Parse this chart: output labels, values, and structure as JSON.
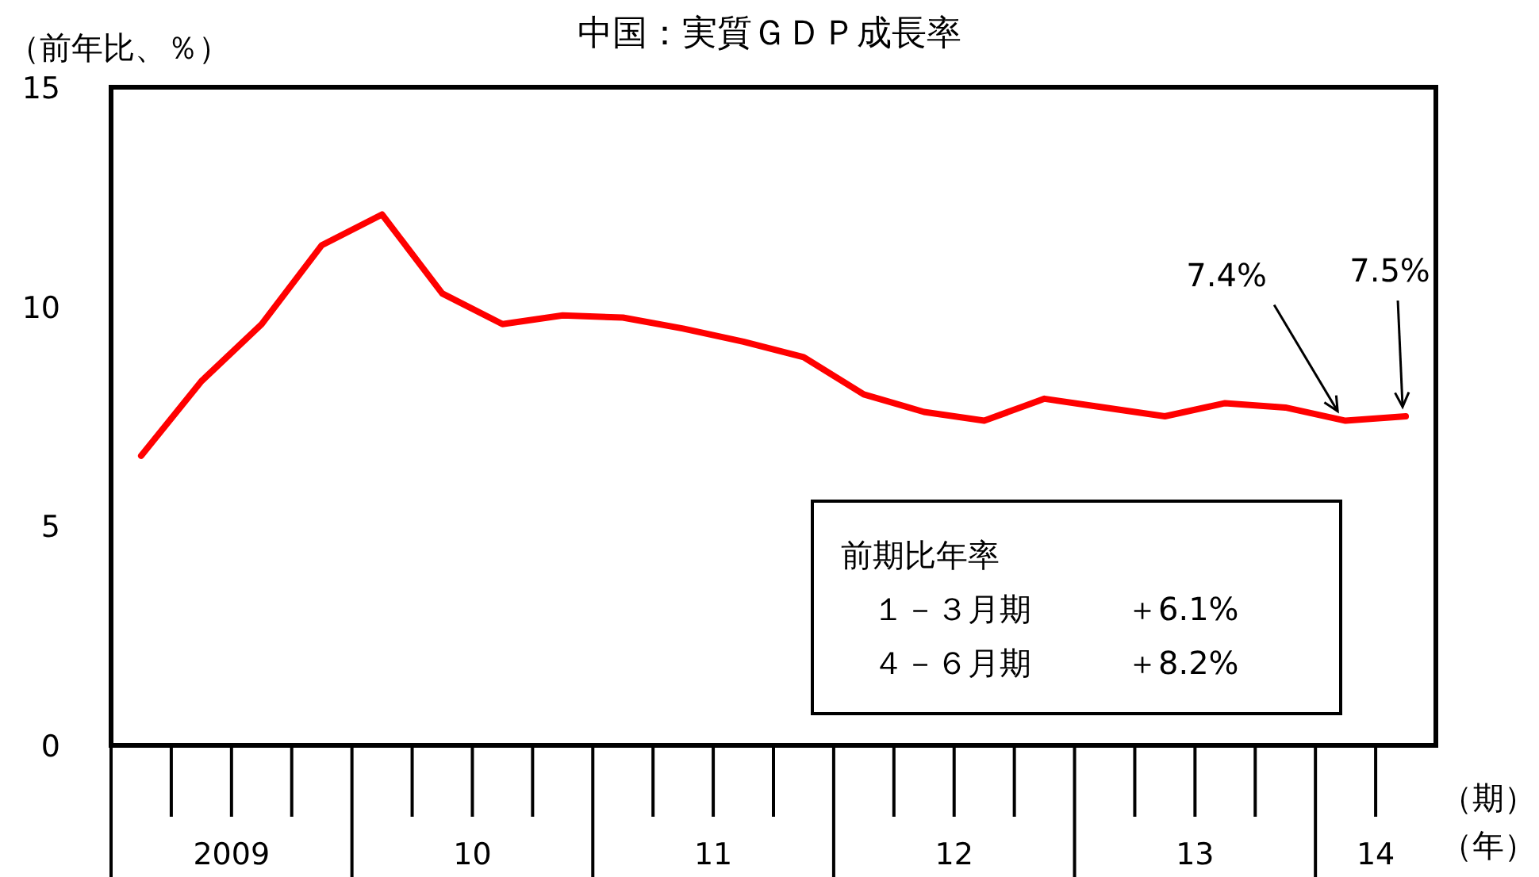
{
  "chart_data": {
    "type": "line",
    "title": "中国：実質ＧＤＰ成長率",
    "ylabel": "（前年比、％）",
    "xlabel": "（期）",
    "annotations": [
      "7.4%",
      "7.5%",
      "前期比年率",
      "　１－３月期　　　＋6.1%",
      "　４－６月期　　　＋8.2%",
      "（年）",
      "2009",
      "10",
      "11",
      "12",
      "13",
      "14"
    ],
    "categories": [
      null,
      null,
      null,
      null,
      null,
      null,
      null,
      null,
      null,
      null,
      null,
      null,
      null,
      null,
      null,
      null,
      null,
      null,
      null,
      null,
      null,
      null
    ],
    "series": [
      {
        "color": "#ff0000",
        "values": [
          6.6,
          8.3,
          9.6,
          11.4,
          12.1,
          10.3,
          9.6,
          9.8,
          9.75,
          9.5,
          9.2,
          8.85,
          8.0,
          7.6,
          7.4,
          7.9,
          7.7,
          7.5,
          7.8,
          7.7,
          7.4,
          7.5
        ]
      }
    ],
    "ylim": [
      0,
      15
    ],
    "yticks": [
      0,
      5,
      10,
      15
    ]
  }
}
